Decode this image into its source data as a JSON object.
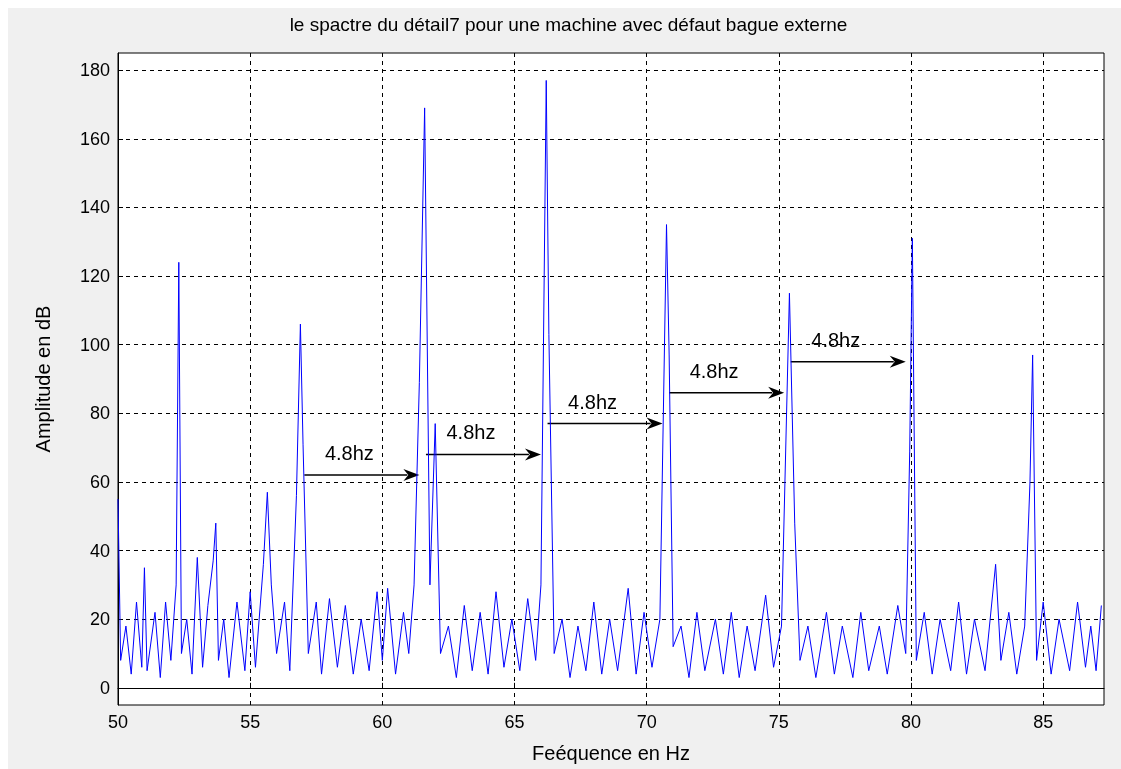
{
  "chart_data": {
    "type": "line",
    "title": "le spactre du détail7 pour une machine avec défaut bague externe",
    "xlabel": "Feéquence en Hz",
    "ylabel": "Amplitude en dB",
    "xlim": [
      50,
      87.3
    ],
    "ylim": [
      -5,
      185
    ],
    "xticks": [
      50,
      55,
      60,
      65,
      70,
      75,
      80,
      85
    ],
    "yticks": [
      0,
      20,
      40,
      60,
      80,
      100,
      120,
      140,
      160,
      180
    ],
    "grid": true,
    "series": [
      {
        "color": "#0000ff",
        "x": [
          50.0,
          50.1,
          50.3,
          50.5,
          50.7,
          50.9,
          51.0,
          51.1,
          51.4,
          51.6,
          51.8,
          52.0,
          52.2,
          52.3,
          52.4,
          52.6,
          52.8,
          53.0,
          53.2,
          53.4,
          53.6,
          53.7,
          53.8,
          54.0,
          54.2,
          54.5,
          54.8,
          55.0,
          55.2,
          55.5,
          55.65,
          55.8,
          56.0,
          56.3,
          56.5,
          56.75,
          56.9,
          57.0,
          57.2,
          57.5,
          57.7,
          58.0,
          58.3,
          58.6,
          58.9,
          59.2,
          59.5,
          59.8,
          60.0,
          60.2,
          60.5,
          60.8,
          61.0,
          61.2,
          61.4,
          61.6,
          61.8,
          62.0,
          62.2,
          62.5,
          62.8,
          63.1,
          63.4,
          63.7,
          64.0,
          64.3,
          64.6,
          64.9,
          65.2,
          65.5,
          65.8,
          66.0,
          66.2,
          66.3,
          66.5,
          66.8,
          67.1,
          67.4,
          67.7,
          68.0,
          68.3,
          68.6,
          68.9,
          69.3,
          69.6,
          69.9,
          70.2,
          70.5,
          70.75,
          70.85,
          71.0,
          71.3,
          71.6,
          71.9,
          72.2,
          72.6,
          72.9,
          73.2,
          73.5,
          73.8,
          74.1,
          74.5,
          74.8,
          75.1,
          75.4,
          75.6,
          75.8,
          76.1,
          76.4,
          76.8,
          77.1,
          77.4,
          77.8,
          78.1,
          78.4,
          78.8,
          79.1,
          79.5,
          79.8,
          79.95,
          80.05,
          80.2,
          80.5,
          80.8,
          81.1,
          81.5,
          81.8,
          82.1,
          82.4,
          82.8,
          83.2,
          83.4,
          83.7,
          84.0,
          84.3,
          84.5,
          84.6,
          84.75,
          85.0,
          85.3,
          85.6,
          86.0,
          86.3,
          86.6,
          86.8,
          87.0,
          87.2
        ],
        "values": [
          55,
          8,
          18,
          4,
          25,
          6,
          35,
          5,
          22,
          3,
          25,
          8,
          30,
          124,
          10,
          20,
          4,
          38,
          6,
          24,
          37,
          48,
          8,
          20,
          3,
          25,
          5,
          28,
          6,
          36,
          57,
          30,
          10,
          25,
          5,
          56,
          106,
          71,
          10,
          25,
          4,
          26,
          6,
          24,
          4,
          20,
          5,
          28,
          8,
          29,
          4,
          22,
          10,
          30,
          89,
          169,
          30,
          77,
          10,
          18,
          3,
          24,
          5,
          22,
          4,
          28,
          6,
          20,
          5,
          26,
          8,
          30,
          177,
          103,
          10,
          20,
          3,
          18,
          5,
          25,
          4,
          20,
          5,
          29,
          4,
          22,
          6,
          20,
          135,
          97,
          12,
          18,
          3,
          22,
          5,
          20,
          4,
          22,
          3,
          18,
          5,
          27,
          6,
          18,
          115,
          48,
          8,
          18,
          3,
          22,
          4,
          18,
          3,
          22,
          5,
          18,
          4,
          24,
          10,
          69,
          131,
          8,
          22,
          4,
          20,
          5,
          25,
          4,
          20,
          5,
          36,
          8,
          22,
          4,
          18,
          60,
          97,
          8,
          25,
          4,
          20,
          5,
          25,
          6,
          18,
          5,
          24
        ]
      }
    ],
    "annotations": [
      {
        "text": "4.8hz",
        "x": 61.4,
        "y": 62
      },
      {
        "text": "4.8hz",
        "x": 66.0,
        "y": 68
      },
      {
        "text": "4.8hz",
        "x": 70.6,
        "y": 77
      },
      {
        "text": "4.8hz",
        "x": 75.2,
        "y": 86
      },
      {
        "text": "4.8hz",
        "x": 79.8,
        "y": 95
      }
    ]
  }
}
